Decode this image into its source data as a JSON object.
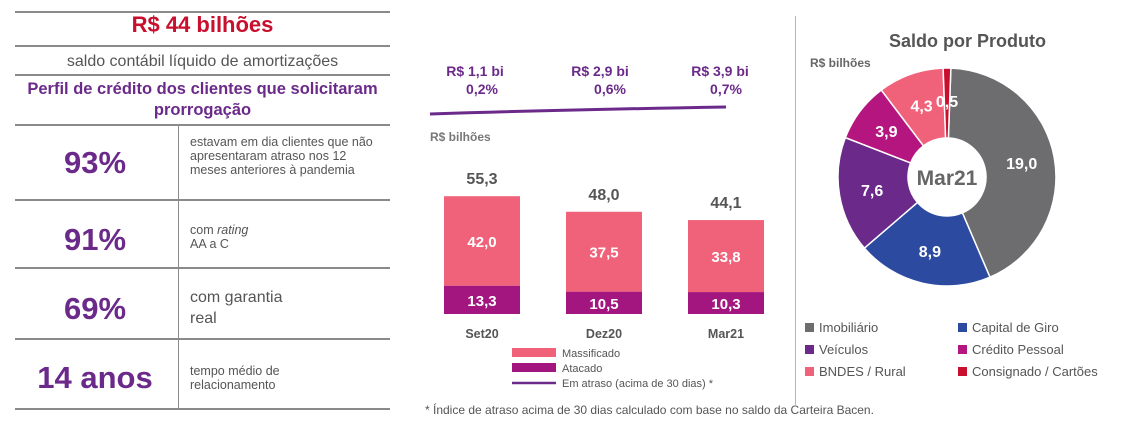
{
  "left_panel": {
    "headline": "R$ 44 bilhões",
    "subline": "saldo contábil líquido de amortizações",
    "title": "Perfil de crédito dos clientes que solicitaram prorrogação",
    "rows": [
      {
        "value": "93%",
        "description": "estavam em dia clientes que não apresentaram atraso nos 12 meses anteriores à pandemia"
      },
      {
        "value": "91%",
        "description_prefix": "com ",
        "description_italic": "rating",
        "description_suffix": "AA a C"
      },
      {
        "value": "69%",
        "description": "com garantia real"
      },
      {
        "value": "14 anos",
        "description": "tempo médio de relacionamento"
      }
    ]
  },
  "footnote": "* Índice de atraso acima de 30 dias calculado com base no saldo da Carteira Bacen.",
  "chart_data": [
    {
      "type": "bar",
      "stacked": true,
      "unit_label": "R$ bilhões",
      "categories": [
        "Set20",
        "Dez20",
        "Mar21"
      ],
      "series": [
        {
          "name": "Atacado",
          "values": [
            13.3,
            10.5,
            10.3
          ],
          "labels": [
            "13,3",
            "10,5",
            "10,3"
          ],
          "color": "#a3157f"
        },
        {
          "name": "Massificado",
          "values": [
            42.0,
            37.5,
            33.8
          ],
          "labels": [
            "42,0",
            "37,5",
            "33,8"
          ],
          "color": "#f0617a"
        }
      ],
      "totals": [
        55.3,
        48.0,
        44.1
      ],
      "total_labels": [
        "55,3",
        "48,0",
        "44,1"
      ],
      "line_series": {
        "name": "Em atraso (acima de 30 dias) *",
        "color": "#6b2a8a",
        "values_bi": [
          "R$ 1,1 bi",
          "R$ 2,9 bi",
          "R$ 3,9 bi"
        ],
        "values_pct": [
          "0,2%",
          "0,6%",
          "0,7%"
        ]
      },
      "legend": [
        "Massificado",
        "Atacado",
        "Em atraso (acima de 30 dias) *"
      ],
      "ylim": [
        0,
        60
      ],
      "grid": false
    },
    {
      "type": "pie",
      "donut": true,
      "title": "Saldo por Produto",
      "unit_label": "R$ bilhões",
      "center_label": "Mar21",
      "slices": [
        {
          "name": "Imobiliário",
          "value": 19.0,
          "label": "19,0",
          "color": "#6d6d6f"
        },
        {
          "name": "Capital de Giro",
          "value": 8.9,
          "label": "8,9",
          "color": "#2c4aa0"
        },
        {
          "name": "Veículos",
          "value": 7.6,
          "label": "7,6",
          "color": "#6b2a8a"
        },
        {
          "name": "Crédito Pessoal",
          "value": 3.9,
          "label": "3,9",
          "color": "#b5157e"
        },
        {
          "name": "BNDES / Rural",
          "value": 4.3,
          "label": "4,3",
          "color": "#f0617a"
        },
        {
          "name": "Consignado / Cartões",
          "value": 0.5,
          "label": "0,5",
          "color": "#c8102e"
        }
      ],
      "legend_placement": "bottom"
    }
  ]
}
